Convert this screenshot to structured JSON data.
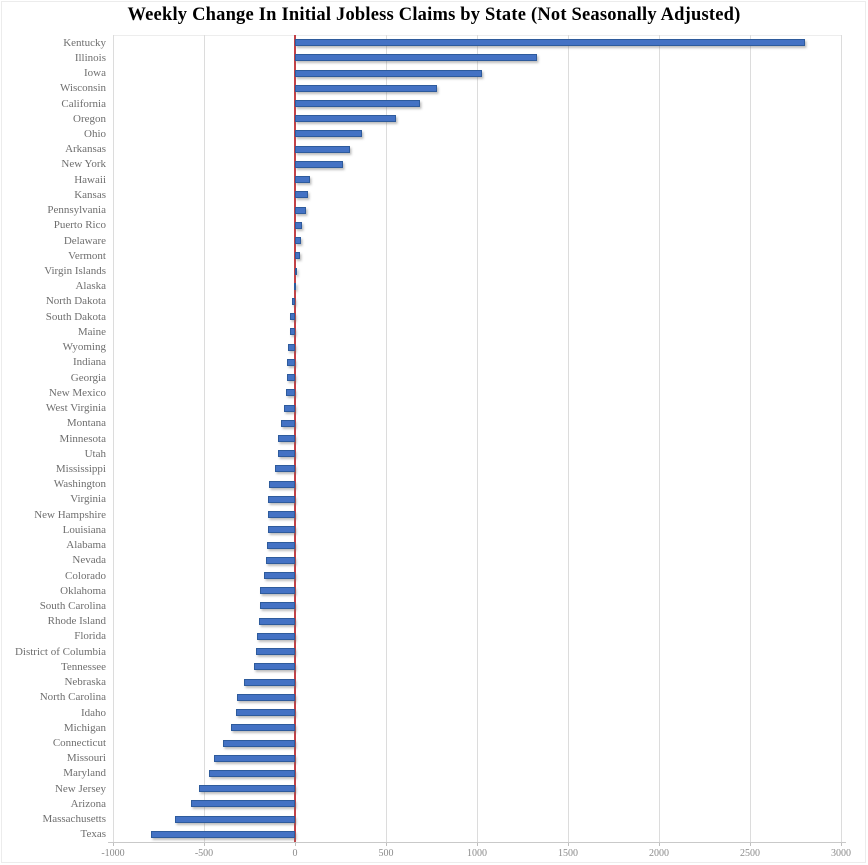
{
  "title": "Weekly Change In Initial Jobless Claims by State (Not Seasonally Adjusted)",
  "chart_data": {
    "type": "bar",
    "orientation": "horizontal",
    "title": "Weekly Change In Initial Jobless Claims by State (Not Seasonally Adjusted)",
    "xlabel": "",
    "ylabel": "",
    "xlim": [
      -1000,
      3000
    ],
    "x_tick_values": [
      -1000,
      -500,
      0,
      500,
      1000,
      1500,
      2000,
      2500,
      3000
    ],
    "x_tick_labels": [
      "-1000",
      "-500",
      "0",
      "500",
      "1000",
      "1500",
      "2000",
      "2500",
      "3000"
    ],
    "grid": true,
    "legend": false,
    "categories": [
      "Kentucky",
      "Illinois",
      "Iowa",
      "Wisconsin",
      "California",
      "Oregon",
      "Ohio",
      "Arkansas",
      "New York",
      "Hawaii",
      "Kansas",
      "Pennsylvania",
      "Puerto Rico",
      "Delaware",
      "Vermont",
      "Virgin Islands",
      "Alaska",
      "North Dakota",
      "South Dakota",
      "Maine",
      "Wyoming",
      "Indiana",
      "Georgia",
      "New Mexico",
      "West Virginia",
      "Montana",
      "Minnesota",
      "Utah",
      "Mississippi",
      "Washington",
      "Virginia",
      "New Hampshire",
      "Louisiana",
      "Alabama",
      "Nevada",
      "Colorado",
      "Oklahoma",
      "South Carolina",
      "Rhode Island",
      "Florida",
      "District of Columbia",
      "Tennessee",
      "Nebraska",
      "North Carolina",
      "Idaho",
      "Michigan",
      "Connecticut",
      "Missouri",
      "Maryland",
      "New Jersey",
      "Arizona",
      "Massachusetts",
      "Texas"
    ],
    "values": [
      2800,
      1330,
      1030,
      780,
      685,
      555,
      370,
      300,
      265,
      80,
      72,
      60,
      40,
      35,
      25,
      10,
      -8,
      -15,
      -28,
      -30,
      -38,
      -42,
      -46,
      -50,
      -58,
      -75,
      -92,
      -96,
      -108,
      -143,
      -146,
      -147,
      -149,
      -155,
      -158,
      -172,
      -190,
      -195,
      -200,
      -210,
      -214,
      -224,
      -278,
      -320,
      -324,
      -352,
      -395,
      -443,
      -473,
      -528,
      -573,
      -660,
      -790
    ],
    "colors": {
      "bar_fill": "#4472c4",
      "bar_border": "#2e5b9c",
      "zero_line": "#c34248",
      "gridline": "#dcdcdc",
      "category_label": "#6e6e6e",
      "axis_label": "#8a8a8a",
      "title": "#000000"
    }
  }
}
